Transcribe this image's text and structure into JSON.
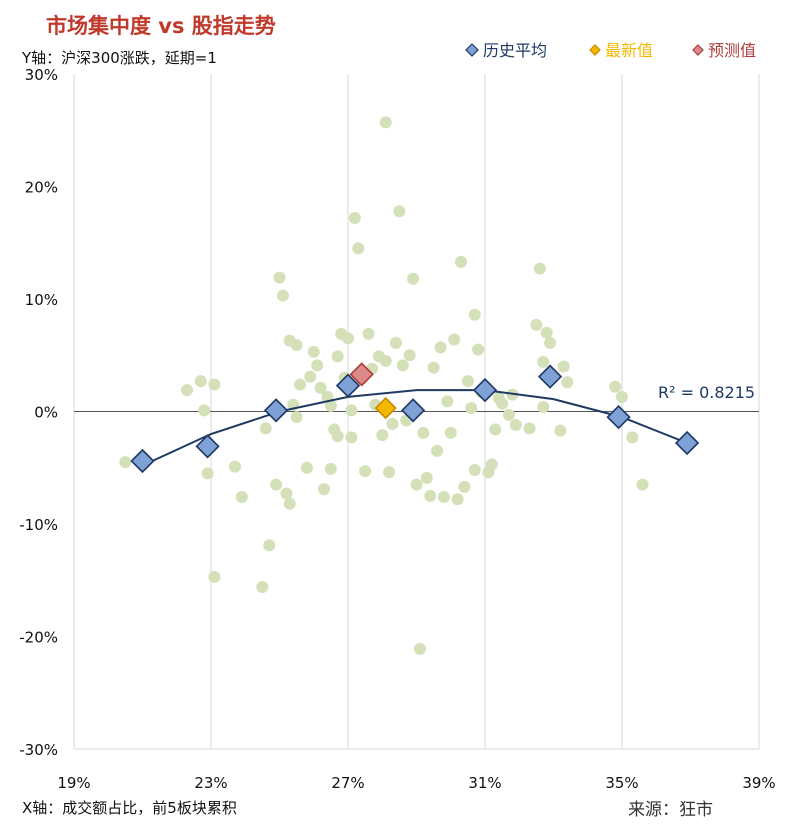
{
  "title": "市场集中度 vs 股指走势",
  "y_note": "Y轴：沪深300涨跌，延期=1",
  "x_note": "X轴：成交额占比，前5板块累积",
  "source": "来源：狂市",
  "colors": {
    "title": "#c0392b",
    "scatter": "#d4e0b8",
    "history": "#7fa2d6",
    "history_border": "#1f3864",
    "latest": "#f5b800",
    "latest_border": "#c98a00",
    "forecast": "#dc8a8a",
    "forecast_border": "#b03c3c",
    "trend": "#1f3864",
    "grid": "#d9d9d9"
  },
  "chart_data": {
    "type": "scatter",
    "xlim": [
      0.19,
      0.39
    ],
    "ylim": [
      -0.3,
      0.3
    ],
    "x_ticks": [
      "19%",
      "23%",
      "27%",
      "31%",
      "35%",
      "39%"
    ],
    "x_tick_values": [
      0.19,
      0.23,
      0.27,
      0.31,
      0.35,
      0.39
    ],
    "y_ticks": [
      "30%",
      "20%",
      "10%",
      "0%",
      "-10%",
      "-20%",
      "-30%"
    ],
    "y_tick_values": [
      0.3,
      0.2,
      0.1,
      0.0,
      -0.1,
      -0.2,
      -0.3
    ],
    "grid": "vertical",
    "legend_position": "top-right",
    "legend": [
      "历史平均",
      "最新值",
      "预测值"
    ],
    "r_squared_label": "R² = 0.8215",
    "scatter_points": [
      [
        0.205,
        -0.045
      ],
      [
        0.223,
        0.019
      ],
      [
        0.227,
        0.027
      ],
      [
        0.228,
        0.001
      ],
      [
        0.229,
        -0.055
      ],
      [
        0.231,
        0.024
      ],
      [
        0.231,
        -0.147
      ],
      [
        0.237,
        -0.049
      ],
      [
        0.239,
        -0.076
      ],
      [
        0.245,
        -0.156
      ],
      [
        0.246,
        -0.015
      ],
      [
        0.247,
        -0.119
      ],
      [
        0.249,
        -0.065
      ],
      [
        0.25,
        0.119
      ],
      [
        0.251,
        0.103
      ],
      [
        0.252,
        -0.073
      ],
      [
        0.253,
        -0.082
      ],
      [
        0.253,
        0.063
      ],
      [
        0.254,
        0.006
      ],
      [
        0.255,
        0.059
      ],
      [
        0.255,
        -0.005
      ],
      [
        0.256,
        0.024
      ],
      [
        0.258,
        -0.05
      ],
      [
        0.259,
        0.031
      ],
      [
        0.26,
        0.053
      ],
      [
        0.261,
        0.041
      ],
      [
        0.262,
        0.021
      ],
      [
        0.263,
        -0.069
      ],
      [
        0.264,
        0.013
      ],
      [
        0.265,
        0.005
      ],
      [
        0.265,
        -0.051
      ],
      [
        0.266,
        -0.016
      ],
      [
        0.267,
        0.049
      ],
      [
        0.267,
        -0.022
      ],
      [
        0.268,
        0.069
      ],
      [
        0.269,
        0.03
      ],
      [
        0.27,
        0.065
      ],
      [
        0.271,
        -0.023
      ],
      [
        0.271,
        0.001
      ],
      [
        0.272,
        0.172
      ],
      [
        0.273,
        0.145
      ],
      [
        0.274,
        0.029
      ],
      [
        0.275,
        -0.053
      ],
      [
        0.276,
        0.069
      ],
      [
        0.277,
        0.038
      ],
      [
        0.278,
        0.006
      ],
      [
        0.279,
        0.049
      ],
      [
        0.28,
        -0.021
      ],
      [
        0.281,
        0.257
      ],
      [
        0.281,
        0.045
      ],
      [
        0.282,
        -0.054
      ],
      [
        0.283,
        -0.011
      ],
      [
        0.284,
        0.061
      ],
      [
        0.285,
        0.178
      ],
      [
        0.286,
        0.041
      ],
      [
        0.287,
        -0.008
      ],
      [
        0.288,
        0.05
      ],
      [
        0.289,
        0.118
      ],
      [
        0.29,
        -0.065
      ],
      [
        0.291,
        -0.211
      ],
      [
        0.292,
        -0.019
      ],
      [
        0.293,
        -0.059
      ],
      [
        0.294,
        -0.075
      ],
      [
        0.295,
        0.039
      ],
      [
        0.296,
        -0.035
      ],
      [
        0.297,
        0.057
      ],
      [
        0.298,
        -0.076
      ],
      [
        0.299,
        0.009
      ],
      [
        0.3,
        -0.019
      ],
      [
        0.301,
        0.064
      ],
      [
        0.302,
        -0.078
      ],
      [
        0.303,
        0.133
      ],
      [
        0.304,
        -0.067
      ],
      [
        0.305,
        0.027
      ],
      [
        0.306,
        0.003
      ],
      [
        0.307,
        0.086
      ],
      [
        0.307,
        -0.052
      ],
      [
        0.308,
        0.055
      ],
      [
        0.309,
        0.017
      ],
      [
        0.311,
        -0.054
      ],
      [
        0.312,
        -0.047
      ],
      [
        0.313,
        -0.016
      ],
      [
        0.314,
        0.012
      ],
      [
        0.315,
        0.007
      ],
      [
        0.317,
        -0.003
      ],
      [
        0.318,
        0.015
      ],
      [
        0.319,
        -0.012
      ],
      [
        0.323,
        -0.015
      ],
      [
        0.325,
        0.077
      ],
      [
        0.326,
        0.127
      ],
      [
        0.327,
        0.044
      ],
      [
        0.327,
        0.004
      ],
      [
        0.328,
        0.07
      ],
      [
        0.329,
        0.061
      ],
      [
        0.332,
        -0.017
      ],
      [
        0.333,
        0.04
      ],
      [
        0.334,
        0.026
      ],
      [
        0.348,
        0.022
      ],
      [
        0.35,
        0.013
      ],
      [
        0.353,
        -0.023
      ],
      [
        0.356,
        -0.065
      ]
    ],
    "series": [
      {
        "name": "历史平均",
        "points": [
          [
            0.21,
            -0.044
          ],
          [
            0.229,
            -0.031
          ],
          [
            0.249,
            0.001
          ],
          [
            0.27,
            0.023
          ],
          [
            0.289,
            0.001
          ],
          [
            0.31,
            0.019
          ],
          [
            0.329,
            0.031
          ],
          [
            0.349,
            -0.005
          ],
          [
            0.369,
            -0.028
          ]
        ]
      },
      {
        "name": "最新值",
        "points": [
          [
            0.281,
            0.003
          ]
        ]
      },
      {
        "name": "预测值",
        "points": [
          [
            0.274,
            0.033
          ]
        ]
      }
    ],
    "trendline": {
      "type": "polynomial-2",
      "x": [
        0.21,
        0.23,
        0.25,
        0.27,
        0.29,
        0.31,
        0.33,
        0.35,
        0.369
      ],
      "y": [
        -0.048,
        -0.02,
        0.0,
        0.013,
        0.019,
        0.019,
        0.011,
        -0.005,
        -0.028
      ]
    }
  }
}
